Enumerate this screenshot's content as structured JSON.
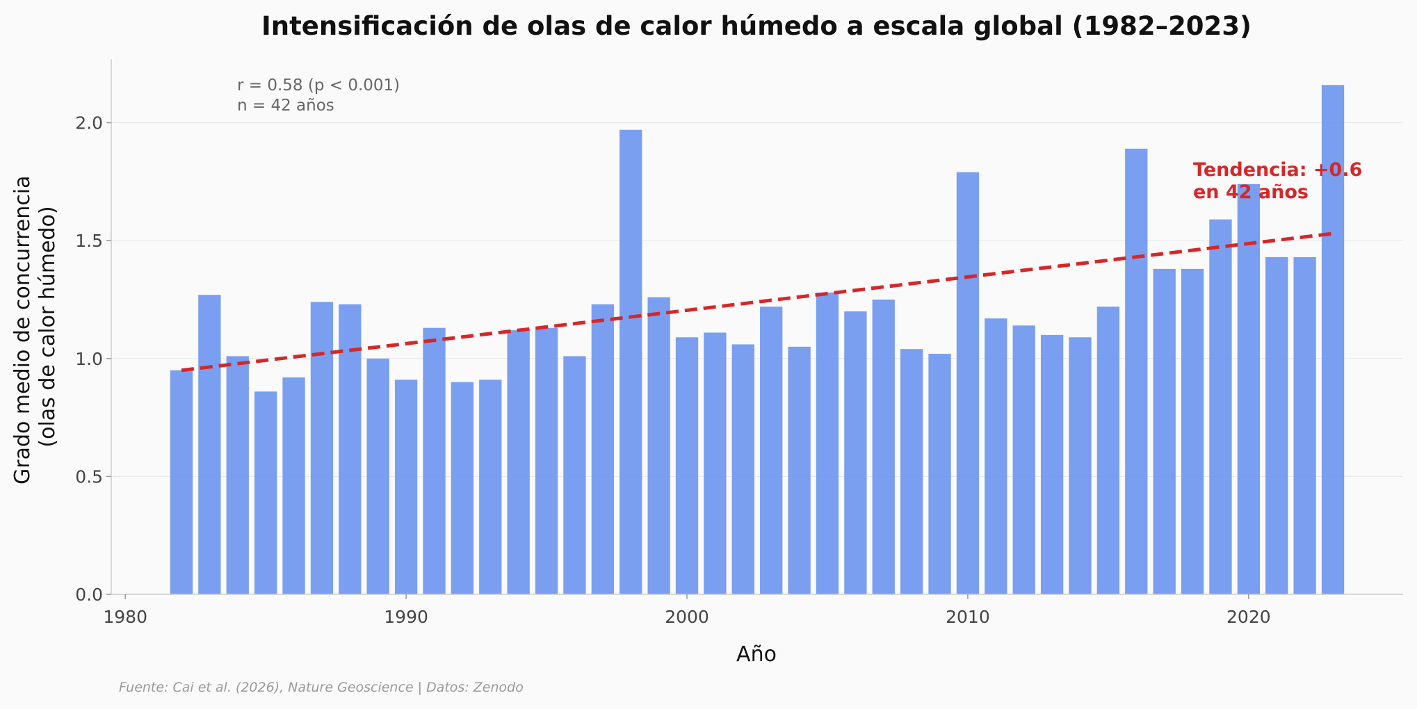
{
  "chart_data": {
    "type": "bar",
    "title": "Intensificación de olas de calor húmedo a escala global (1982–2023)",
    "xlabel": "Año",
    "ylabel_lines": [
      "Grado medio de concurrencia",
      "(olas de calor húmedo)"
    ],
    "x": [
      1982,
      1983,
      1984,
      1985,
      1986,
      1987,
      1988,
      1989,
      1990,
      1991,
      1992,
      1993,
      1994,
      1995,
      1996,
      1997,
      1998,
      1999,
      2000,
      2001,
      2002,
      2003,
      2004,
      2005,
      2006,
      2007,
      2008,
      2009,
      2010,
      2011,
      2012,
      2013,
      2014,
      2015,
      2016,
      2017,
      2018,
      2019,
      2020,
      2021,
      2022,
      2023
    ],
    "values": [
      0.95,
      1.27,
      1.01,
      0.86,
      0.92,
      1.24,
      1.23,
      1.0,
      0.91,
      1.13,
      0.9,
      0.91,
      1.12,
      1.13,
      1.01,
      1.23,
      1.97,
      1.26,
      1.09,
      1.11,
      1.06,
      1.22,
      1.05,
      1.28,
      1.2,
      1.25,
      1.04,
      1.02,
      1.79,
      1.17,
      1.14,
      1.1,
      1.09,
      1.22,
      1.89,
      1.38,
      1.38,
      1.59,
      1.74,
      1.43,
      1.43,
      2.16
    ],
    "xlim": [
      1979.5,
      2025.5
    ],
    "ylim": [
      0,
      2.27
    ],
    "xticks": [
      1980,
      1990,
      2000,
      2010,
      2020
    ],
    "yticks": [
      "0.0",
      "0.5",
      "1.0",
      "1.5",
      "2.0"
    ],
    "grid": true,
    "bar_color": "#6b93ee",
    "trend": {
      "start": [
        1982,
        0.95
      ],
      "end": [
        2023,
        1.53
      ],
      "color": "#d62728",
      "label_lines": [
        "Tendencia: +0.6",
        "en 42 años"
      ]
    },
    "stats_lines": [
      "r = 0.58 (p < 0.001)",
      "n = 42 años"
    ],
    "source": "Fuente: Cai et al. (2026), Nature Geoscience | Datos: Zenodo"
  }
}
